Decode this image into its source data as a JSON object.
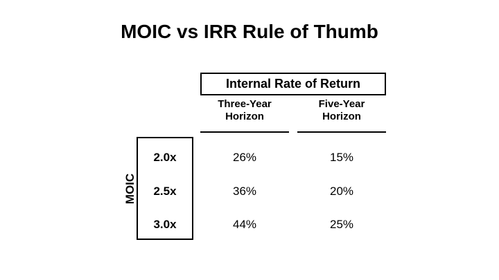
{
  "slide": {
    "title": "MOIC vs IRR Rule of Thumb",
    "background_color": "#FFFFFF",
    "text_color": "#000000",
    "border_color": "#000000"
  },
  "table": {
    "group_header": "Internal Rate of Return",
    "row_axis_label": "MOIC",
    "columns": [
      {
        "line1": "Three-Year",
        "line2": "Horizon"
      },
      {
        "line1": "Five-Year",
        "line2": "Horizon"
      }
    ],
    "rows": [
      {
        "moic": "2.0x",
        "three_year": "26%",
        "five_year": "15%"
      },
      {
        "moic": "2.5x",
        "three_year": "36%",
        "five_year": "20%"
      },
      {
        "moic": "3.0x",
        "three_year": "44%",
        "five_year": "25%"
      }
    ]
  },
  "chart_data": {
    "type": "table",
    "title": "MOIC vs IRR Rule of Thumb",
    "column_group_header": "Internal Rate of Return",
    "row_group_header": "MOIC",
    "columns": [
      "Three-Year Horizon",
      "Five-Year Horizon"
    ],
    "row_labels": [
      "2.0x",
      "2.5x",
      "3.0x"
    ],
    "cells": [
      [
        "26%",
        "15%"
      ],
      [
        "36%",
        "20%"
      ],
      [
        "44%",
        "25%"
      ]
    ]
  }
}
